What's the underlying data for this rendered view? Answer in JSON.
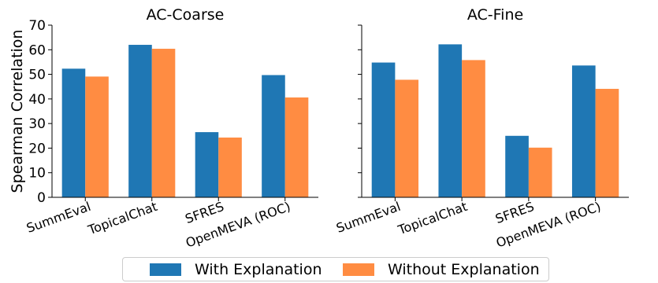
{
  "chart_data": [
    {
      "type": "bar",
      "title": "AC-Coarse",
      "ylabel": "Spearman Correlation",
      "xlabel": "",
      "categories": [
        "SummEval",
        "TopicalChat",
        "SFRES",
        "OpenMEVA (ROC)"
      ],
      "series": [
        {
          "name": "With Explanation",
          "values": [
            52.3,
            62.0,
            26.5,
            49.7
          ],
          "color": "#1f77b4"
        },
        {
          "name": "Without Explanation",
          "values": [
            49.1,
            60.4,
            24.3,
            40.6
          ],
          "color": "#ff8c42"
        }
      ],
      "ylim": [
        0,
        70
      ],
      "yticks": [
        0,
        10,
        20,
        30,
        40,
        50,
        60,
        70
      ],
      "grid": false
    },
    {
      "type": "bar",
      "title": "AC-Fine",
      "ylabel": "",
      "xlabel": "",
      "categories": [
        "SummEval",
        "TopicalChat",
        "SFRES",
        "OpenMEVA (ROC)"
      ],
      "series": [
        {
          "name": "With Explanation",
          "values": [
            54.8,
            62.2,
            25.0,
            53.6
          ],
          "color": "#1f77b4"
        },
        {
          "name": "Without Explanation",
          "values": [
            47.8,
            55.8,
            20.2,
            44.1
          ],
          "color": "#ff8c42"
        }
      ],
      "ylim": [
        0,
        70
      ],
      "yticks": [
        0,
        10,
        20,
        30,
        40,
        50,
        60,
        70
      ],
      "grid": false
    }
  ],
  "legend": {
    "placement": "bottom-center",
    "items": [
      {
        "label": "With Explanation",
        "color": "#1f77b4"
      },
      {
        "label": "Without Explanation",
        "color": "#ff8c42"
      }
    ]
  }
}
